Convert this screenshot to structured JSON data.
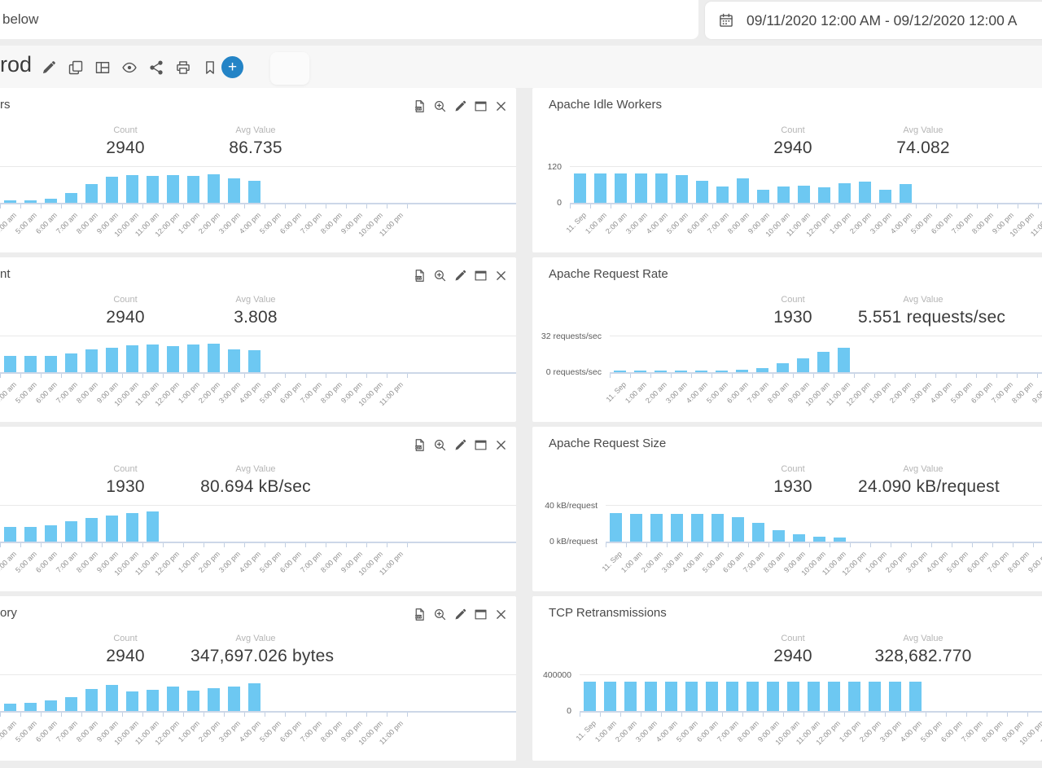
{
  "topbar": {
    "search_value": "below",
    "date_range": "09/11/2020 12:00 AM - 09/12/2020 12:00 A"
  },
  "toolbar": {
    "title_fragment": "rod",
    "icons": [
      "edit",
      "duplicate",
      "grid",
      "view",
      "share",
      "print",
      "bookmark"
    ],
    "add_button": "+"
  },
  "panel_action_icons": [
    "export-csv",
    "zoom-in",
    "edit",
    "expand",
    "close"
  ],
  "stat_labels": {
    "count": "Count",
    "avg": "Avg Value"
  },
  "colors": {
    "bar": "#6dc8f2",
    "accent_blue": "#2484c6"
  },
  "x_labels": [
    "11. Sep",
    "1:00 am",
    "2:00 am",
    "3:00 am",
    "4:00 am",
    "5:00 am",
    "6:00 am",
    "7:00 am",
    "8:00 am",
    "9:00 am",
    "10:00 am",
    "11:00 am",
    "12:00 pm",
    "1:00 pm",
    "2:00 pm",
    "3:00 pm",
    "4:00 pm",
    "5:00 pm",
    "6:00 pm",
    "7:00 pm",
    "8:00 pm",
    "9:00 pm",
    "10:00 pm",
    "11:00 pm"
  ],
  "chart_data": [
    {
      "type": "bar",
      "row": 1,
      "column": "left",
      "title_visible": "rs",
      "count": "2940",
      "avg_value": "86.735",
      "ymax": 120,
      "y_top_label": "",
      "y_bottom_label": "",
      "axis_width": 66,
      "values": [
        8,
        8,
        8,
        8,
        8,
        8,
        13,
        32,
        61,
        85,
        90,
        88,
        90,
        88,
        93,
        80,
        72,
        0,
        0,
        0,
        0,
        0,
        0,
        0
      ]
    },
    {
      "type": "bar",
      "row": 1,
      "column": "right",
      "title_visible": "Apache Idle Workers",
      "count": "2940",
      "avg_value": "74.082",
      "ymax": 120,
      "y_top_label": "120",
      "y_bottom_label": "0",
      "axis_width": 46,
      "values": [
        96,
        96,
        96,
        96,
        96,
        90,
        72,
        53,
        80,
        43,
        53,
        56,
        51,
        64,
        69,
        43,
        61,
        0,
        0,
        0,
        0,
        0,
        0,
        0
      ]
    },
    {
      "type": "bar",
      "row": 2,
      "column": "left",
      "title_visible": "nt",
      "count": "2940",
      "avg_value": "3.808",
      "ymax": 8,
      "y_top_label": "",
      "y_bottom_label": "",
      "axis_width": 66,
      "values": [
        3.6,
        3.6,
        3.6,
        3.6,
        3.6,
        3.6,
        3.6,
        4.1,
        5,
        5.3,
        5.9,
        6,
        5.7,
        6,
        6.2,
        5,
        4.8,
        0,
        0,
        0,
        0,
        0,
        0,
        0
      ]
    },
    {
      "type": "bar",
      "row": 2,
      "column": "right",
      "title_visible": "Apache Request Rate",
      "count": "1930",
      "avg_value": "5.551 requests/sec",
      "ymax": 32,
      "y_top_label": "32 requests/sec",
      "y_bottom_label": "0 requests/sec",
      "axis_width": 95,
      "values": [
        1.5,
        1.5,
        1.5,
        1.5,
        1.5,
        1.5,
        2.3,
        3.8,
        7.6,
        12,
        18,
        21,
        0,
        0,
        0,
        0,
        0,
        0,
        0,
        0,
        0,
        0,
        0,
        0
      ]
    },
    {
      "type": "bar",
      "row": 3,
      "column": "left",
      "title_visible": "",
      "count": "1930",
      "avg_value": "80.694 kB/sec",
      "ymax": 160,
      "y_top_label": "",
      "y_bottom_label": "",
      "axis_width": 66,
      "values": [
        64,
        64,
        64,
        64,
        64,
        64,
        71,
        89,
        103,
        114,
        124,
        132,
        0,
        0,
        0,
        0,
        0,
        0,
        0,
        0,
        0,
        0,
        0,
        0
      ]
    },
    {
      "type": "bar",
      "row": 3,
      "column": "right",
      "title_visible": "Apache Request Size",
      "count": "1930",
      "avg_value": "24.090 kB/request",
      "ymax": 40,
      "y_top_label": "40 kB/request",
      "y_bottom_label": "0 kB/request",
      "axis_width": 90,
      "values": [
        31,
        30,
        30,
        30,
        30,
        30,
        27,
        20,
        12,
        7.6,
        5.7,
        4.8,
        0,
        0,
        0,
        0,
        0,
        0,
        0,
        0,
        0,
        0,
        0,
        0
      ]
    },
    {
      "type": "bar",
      "row": 4,
      "column": "left",
      "title_visible": "ory",
      "count": "2940",
      "avg_value": "347,697.026 bytes",
      "ymax": 1000000,
      "y_top_label": "",
      "y_bottom_label": "",
      "axis_width": 66,
      "values": [
        220000,
        220000,
        222000,
        222000,
        200000,
        222000,
        289000,
        378000,
        600000,
        711000,
        533000,
        578000,
        667000,
        556000,
        622000,
        667000,
        756000,
        0,
        0,
        0,
        0,
        0,
        0,
        0
      ]
    },
    {
      "type": "bar",
      "row": 4,
      "column": "right",
      "title_visible": "TCP Retransmissions",
      "count": "2940",
      "avg_value": "328,682.770",
      "ymax": 400000,
      "y_top_label": "400000",
      "y_bottom_label": "0",
      "axis_width": 58,
      "values": [
        320000,
        320000,
        320000,
        320000,
        320000,
        320000,
        320000,
        320000,
        320000,
        320000,
        320000,
        320000,
        320000,
        320000,
        320000,
        320000,
        320000,
        0,
        0,
        0,
        0,
        0,
        0,
        0
      ]
    }
  ]
}
